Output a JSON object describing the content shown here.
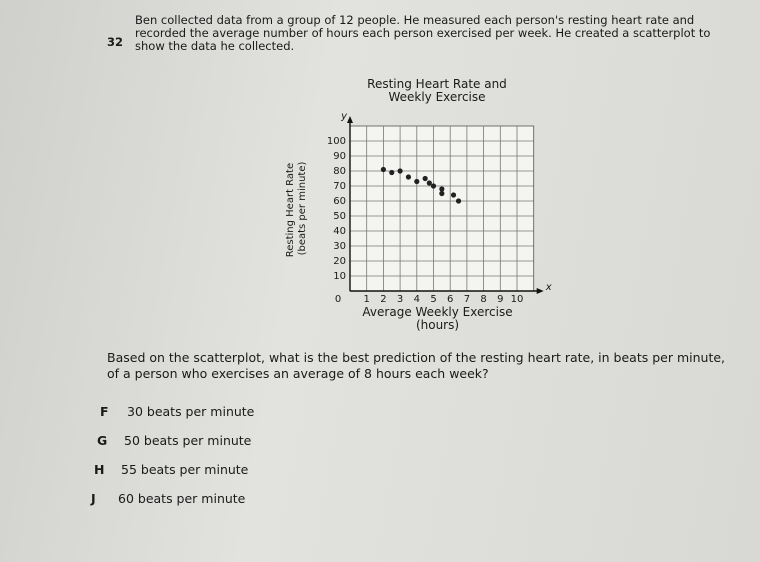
{
  "question": {
    "number": "32",
    "text": "Ben collected data from a group of 12 people. He measured each person's resting heart rate and recorded the average number of hours each person exercised per week. He created a scatterplot to show the data he collected."
  },
  "chart_data": {
    "type": "scatter",
    "title": "Resting Heart Rate and Weekly Exercise",
    "x_label": "Average Weekly Exercise (hours)",
    "y_label": "Resting Heart Rate (beats per minute)",
    "x_axis_letter": "x",
    "y_axis_letter": "y",
    "x": [
      2,
      2.5,
      3,
      3.5,
      4,
      4.5,
      4.75,
      5,
      5.5,
      5.5,
      6.2,
      6.5
    ],
    "values": [
      81,
      79,
      80,
      76,
      73,
      75,
      72,
      70,
      68,
      65,
      64,
      60
    ],
    "color": "#222222",
    "xlim": [
      0,
      11
    ],
    "ylim": [
      0,
      110
    ],
    "xticks": [
      0,
      1,
      2,
      3,
      4,
      5,
      6,
      7,
      8,
      9,
      10
    ],
    "yticks": [
      10,
      20,
      30,
      40,
      50,
      60,
      70,
      80,
      90,
      100
    ],
    "grid": true
  },
  "prompt": "Based on the scatterplot, what is the best prediction of the resting heart rate, in beats per minute, of a person who exercises an average of 8 hours each week?",
  "choices": [
    {
      "letter": "F",
      "text": "30 beats per minute"
    },
    {
      "letter": "G",
      "text": "50 beats per minute"
    },
    {
      "letter": "H",
      "text": "55 beats per minute"
    },
    {
      "letter": "J",
      "text": "60 beats per minute"
    }
  ]
}
